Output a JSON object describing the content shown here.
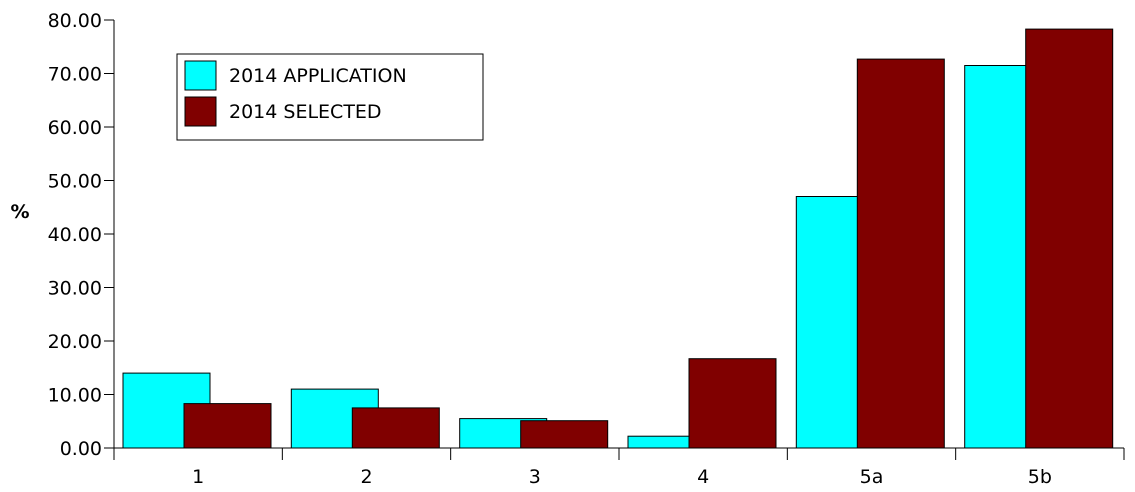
{
  "chart_data": {
    "type": "bar",
    "categories": [
      "1",
      "2",
      "3",
      "4",
      "5a",
      "5b"
    ],
    "series": [
      {
        "name": "2014 APPLICATION",
        "color": "#00FFFF",
        "values": [
          14.0,
          11.0,
          5.5,
          2.2,
          47.0,
          71.5
        ]
      },
      {
        "name": "2014 SELECTED",
        "color": "#800000",
        "values": [
          8.3,
          7.5,
          5.1,
          16.7,
          72.7,
          78.3
        ]
      }
    ],
    "title": "",
    "xlabel": "",
    "ylabel": "%",
    "ylim": [
      0,
      80
    ],
    "yticks": [
      "0.00",
      "10.00",
      "20.00",
      "30.00",
      "40.00",
      "50.00",
      "60.00",
      "70.00",
      "80.00"
    ],
    "grid": false,
    "legend_position": "top-left"
  }
}
